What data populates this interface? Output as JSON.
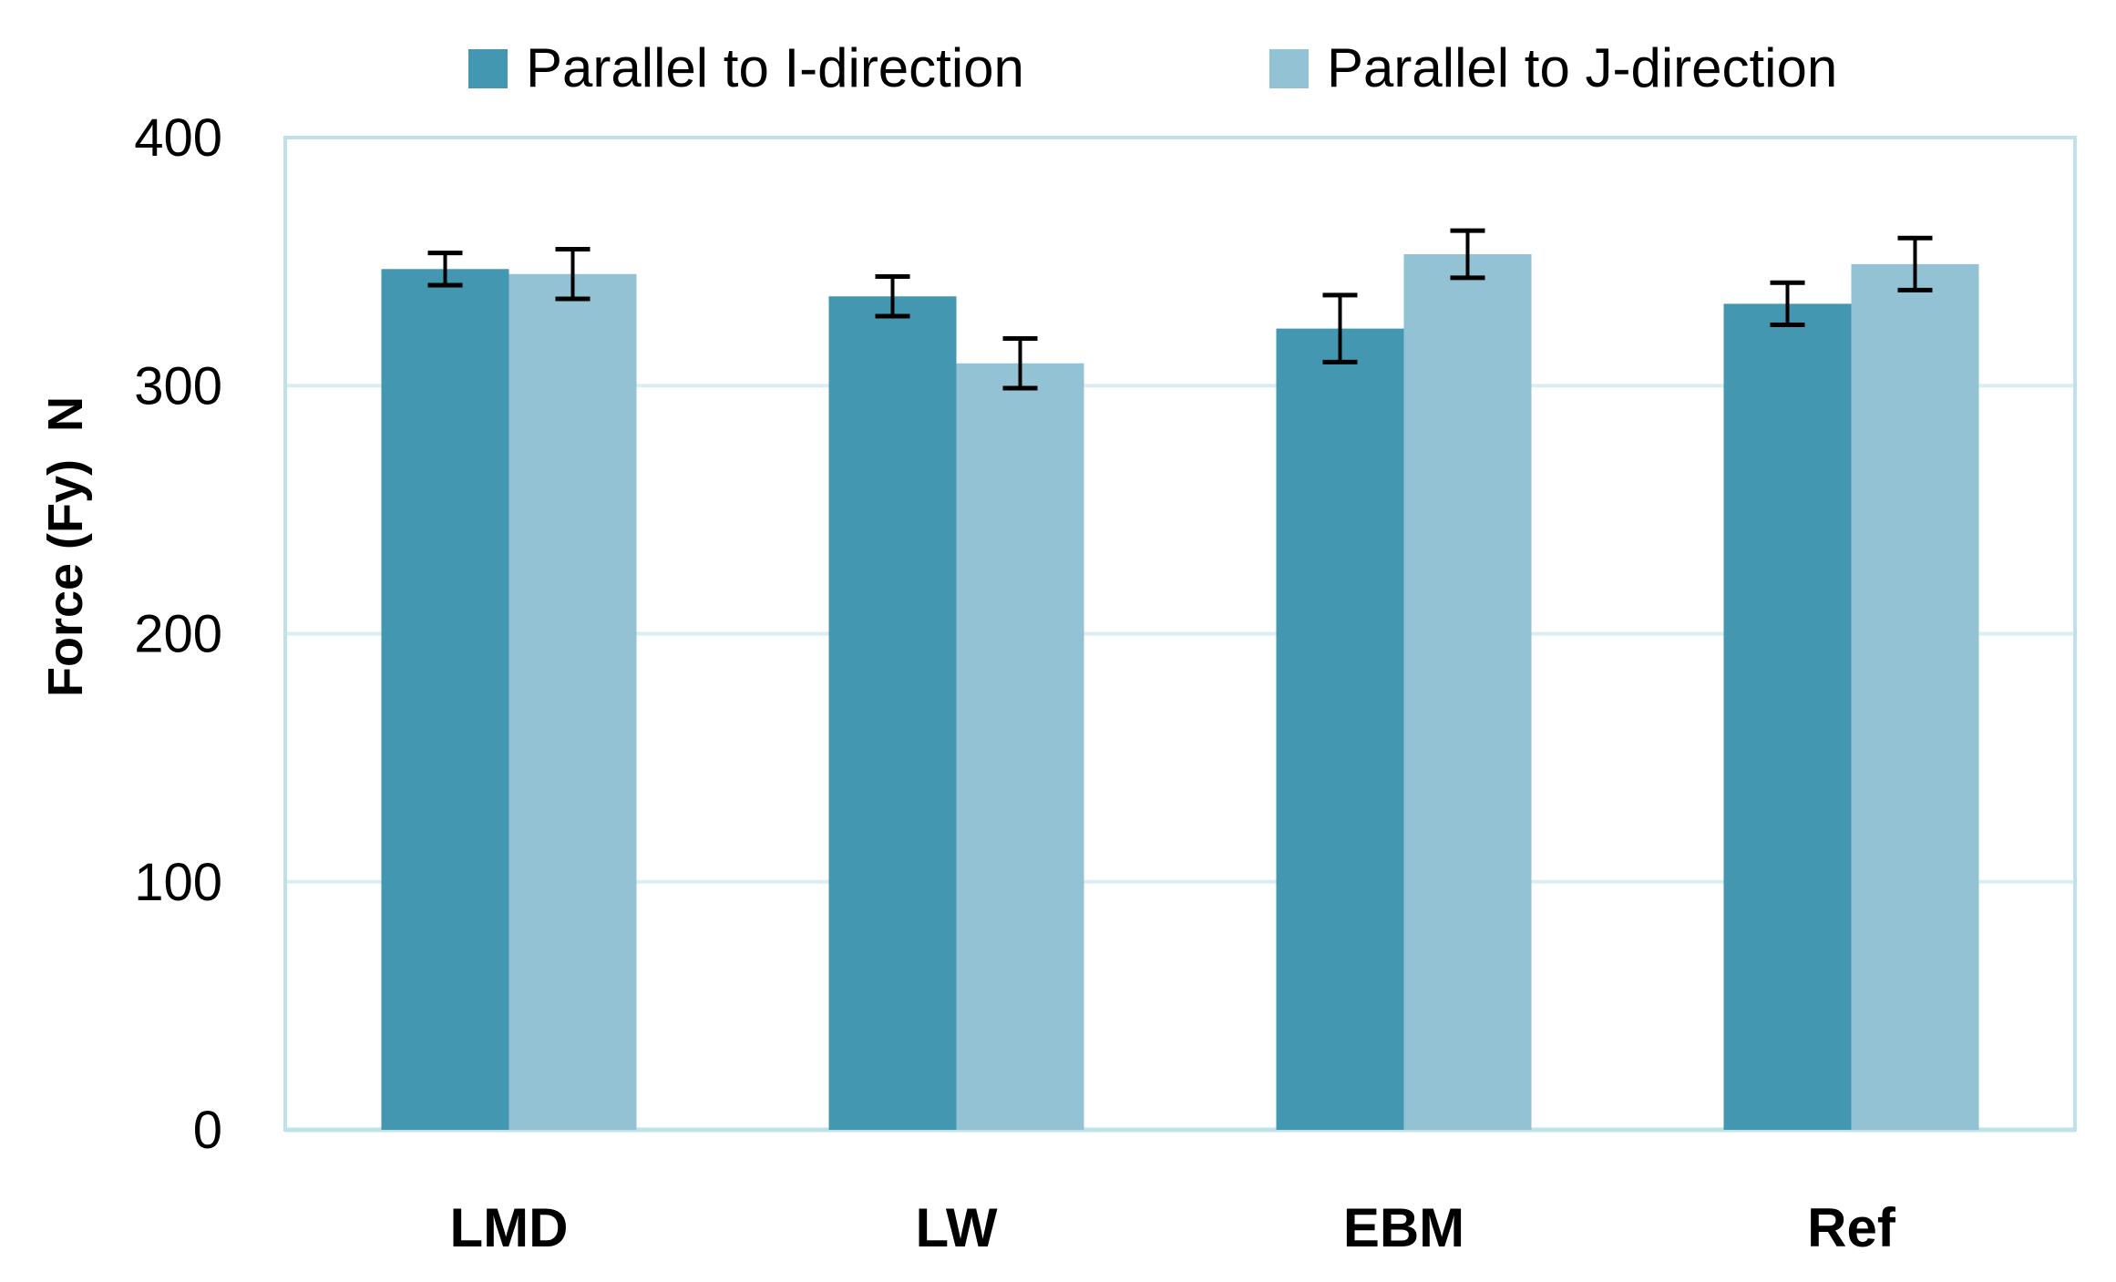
{
  "chart_data": {
    "type": "bar",
    "title": "",
    "xlabel": "",
    "ylabel": "Force (Fy)  N",
    "ylim": [
      0,
      400
    ],
    "yticks": [
      0,
      100,
      200,
      300,
      400
    ],
    "grid": true,
    "legend_position": "top",
    "categories": [
      "LMD",
      "LW",
      "EBM",
      "Ref"
    ],
    "series": [
      {
        "name": "Parallel to I-direction",
        "color": "#4397b0",
        "values": [
          347,
          336,
          323,
          333
        ],
        "errors": [
          6.5,
          8,
          13.5,
          8.5
        ]
      },
      {
        "name": "Parallel to J-direction",
        "color": "#93c2d4",
        "values": [
          345,
          309,
          353,
          349
        ],
        "errors": [
          10,
          10,
          9.5,
          10.5
        ]
      }
    ]
  }
}
